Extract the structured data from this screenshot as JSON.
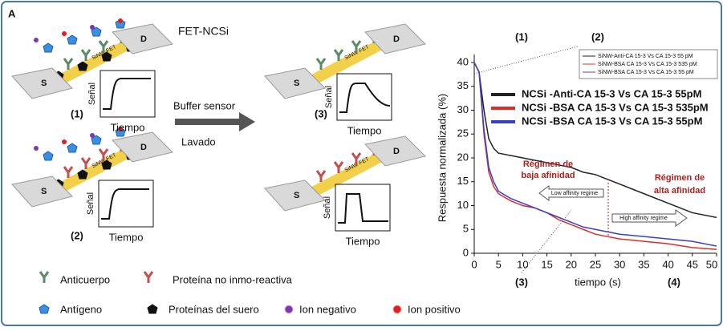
{
  "figure_label": "A",
  "device_label": "FET-NCSi",
  "electrode_source": "S",
  "electrode_drain": "D",
  "chip_label": "SiNW FET",
  "panels": [
    {
      "label": "(1)",
      "y_label": "Señal",
      "x_label": "Tiempo"
    },
    {
      "label": "(2)",
      "y_label": "Señal",
      "x_label": "Tiempo"
    },
    {
      "label": "(3)",
      "y_label": "Señal",
      "x_label": "Tiempo"
    },
    {
      "y_label": "Señal",
      "x_label": "Tiempo"
    }
  ],
  "arrow": {
    "top": "Buffer sensor",
    "bottom": "Lavado"
  },
  "legend": [
    "Anticuerpo",
    "Proteína no inmo-reactiva",
    "Antígeno",
    "Proteínas del suero",
    "Ion negativo",
    "Ion positivo"
  ],
  "chart_data": {
    "type": "line",
    "x_label": "tiempo (s)",
    "y_label": "Respuesta normalizada (%)",
    "x": [
      0,
      1,
      2,
      3,
      4,
      5,
      7.5,
      10,
      12.5,
      15,
      17.5,
      20,
      22.5,
      25,
      27.5,
      30,
      35,
      40,
      45,
      50
    ],
    "series": [
      {
        "name": "NCSi -Anti-CA 15-3 Vs CA 15-3 55pM",
        "color": "#222222",
        "values": [
          40,
          38,
          30,
          24,
          22,
          21,
          20.5,
          20,
          19.5,
          19,
          18.5,
          18,
          17,
          16.5,
          15.5,
          14.5,
          12.5,
          10.5,
          8.5,
          7.5
        ]
      },
      {
        "name": "NCSi -BSA CA 15-3 Vs CA 15-3 535pM",
        "color": "#d9302c",
        "values": [
          40,
          38,
          25,
          17,
          14,
          12.5,
          11,
          10,
          9.5,
          8.5,
          7,
          6,
          5,
          4,
          3.5,
          3,
          2.5,
          2,
          1.2,
          0.8
        ]
      },
      {
        "name": "NCSi -BSA CA 15-3 Vs CA 15-3 55pM",
        "color": "#3a3fc8",
        "values": [
          40,
          38,
          26,
          18,
          15,
          13,
          11.5,
          10.5,
          9.5,
          8.5,
          7.5,
          6.5,
          5.5,
          5,
          4.5,
          4,
          3.5,
          3,
          2.5,
          1.5
        ]
      }
    ],
    "reference_legend": [
      {
        "name": "SiNW-Anti-CA 15-3 Vs CA 15-3 55 pM",
        "color": "#222222"
      },
      {
        "name": "SiNW-BSA CA 15-3 Vs CA 15-3 535 pM",
        "color": "#d9302c"
      },
      {
        "name": "SiNW-BSA CA 15-3 Vs CA 15-3 55 pM",
        "color": "#6a3fa8"
      }
    ],
    "annotations": {
      "regime_low": [
        "Régimen de",
        "baja afinidad"
      ],
      "regime_high": [
        "Régimen de",
        "alta afinidad"
      ],
      "low_box": "Low affinity regime",
      "high_box": "High affinity regime",
      "markers": [
        "(1)",
        "(2)",
        "(3)",
        "(4)"
      ]
    },
    "xlim": [
      0,
      50
    ],
    "ylim": [
      0,
      40
    ],
    "xticks": [
      0,
      5,
      10,
      15,
      20,
      25,
      30,
      35,
      40,
      45,
      50
    ],
    "yticks": [
      0,
      5,
      10,
      15,
      20,
      25,
      30,
      35,
      40
    ]
  }
}
